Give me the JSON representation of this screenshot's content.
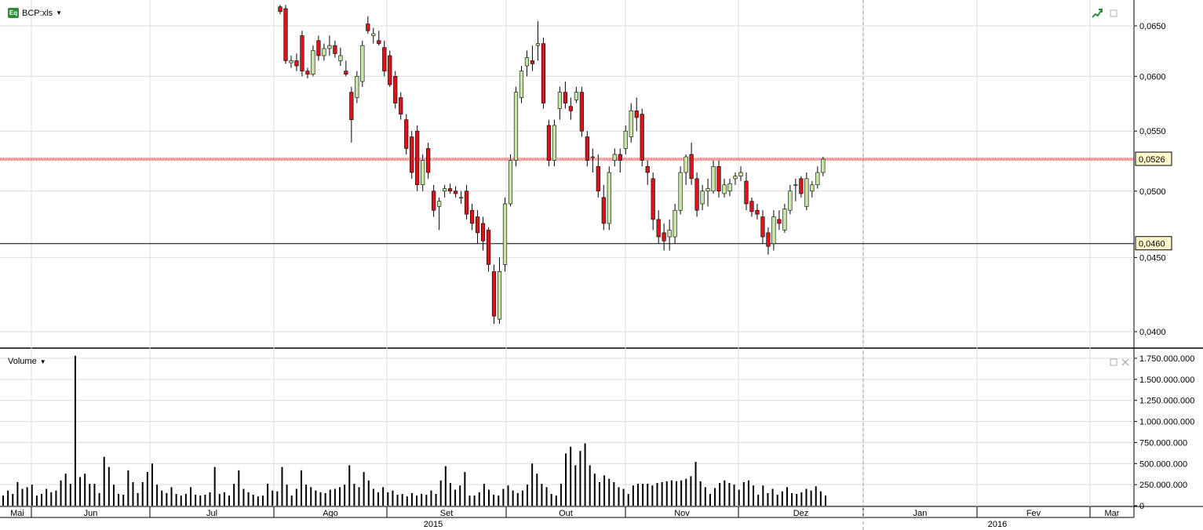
{
  "instrument": {
    "label": "BCP:xls",
    "icon": "eq-icon",
    "icon_text": "Eq"
  },
  "volume_panel": {
    "label": "Volume"
  },
  "colors": {
    "up": "#c8e6a8",
    "down": "#d9141a",
    "wick": "#000000",
    "grid": "#dcdcdc",
    "bar": "#000000"
  },
  "price_labels": {
    "last": "0,0526",
    "support": "0,0460"
  },
  "chart_data": [
    {
      "type": "candlestick",
      "title": "",
      "y_axis": {
        "ticks": [
          "0,0400",
          "0,0450",
          "0,0500",
          "0,0550",
          "0,0600",
          "0,0650"
        ],
        "position": "right"
      },
      "x_axis": {
        "months": [
          "Mai",
          "Jun",
          "Jul",
          "Ago",
          "Set",
          "Out",
          "Nov",
          "Dez",
          "Jan",
          "Fev",
          "Mar"
        ],
        "years": [
          "2015",
          "2016"
        ]
      },
      "reference_lines": [
        {
          "value": 0.0526,
          "label": "0,0526",
          "style": "dotted-red"
        },
        {
          "value": 0.046,
          "label": "0,0460",
          "style": "solid-black"
        }
      ],
      "candles": [
        [
          0.067,
          0.0672,
          0.0662,
          0.0665
        ],
        [
          0.0668,
          0.0672,
          0.0612,
          0.0615
        ],
        [
          0.0613,
          0.062,
          0.0608,
          0.0615
        ],
        [
          0.0615,
          0.0622,
          0.0605,
          0.061
        ],
        [
          0.064,
          0.0645,
          0.06,
          0.0605
        ],
        [
          0.0605,
          0.0608,
          0.0598,
          0.0602
        ],
        [
          0.0602,
          0.063,
          0.06,
          0.0625
        ],
        [
          0.0635,
          0.064,
          0.0615,
          0.062
        ],
        [
          0.062,
          0.0632,
          0.0615,
          0.0627
        ],
        [
          0.0627,
          0.064,
          0.062,
          0.063
        ],
        [
          0.063,
          0.0635,
          0.0618,
          0.0622
        ],
        [
          0.0615,
          0.0628,
          0.061,
          0.062
        ],
        [
          0.0605,
          0.0615,
          0.06,
          0.0602
        ],
        [
          0.0585,
          0.059,
          0.054,
          0.056
        ],
        [
          0.058,
          0.0605,
          0.0575,
          0.06
        ],
        [
          0.0595,
          0.0635,
          0.059,
          0.063
        ],
        [
          0.0652,
          0.066,
          0.0642,
          0.0645
        ],
        [
          0.064,
          0.0648,
          0.0632,
          0.0642
        ],
        [
          0.0635,
          0.0645,
          0.063,
          0.0632
        ],
        [
          0.0628,
          0.0635,
          0.06,
          0.0605
        ],
        [
          0.062,
          0.0625,
          0.059,
          0.0592
        ],
        [
          0.06,
          0.0605,
          0.057,
          0.0575
        ],
        [
          0.058,
          0.0585,
          0.056,
          0.0565
        ],
        [
          0.056,
          0.0565,
          0.053,
          0.0535
        ],
        [
          0.0545,
          0.055,
          0.051,
          0.0515
        ],
        [
          0.055,
          0.0555,
          0.05,
          0.0505
        ],
        [
          0.0505,
          0.053,
          0.05,
          0.0525
        ],
        [
          0.0535,
          0.054,
          0.051,
          0.0515
        ],
        [
          0.05,
          0.0505,
          0.048,
          0.0485
        ],
        [
          0.0488,
          0.0495,
          0.047,
          0.0492
        ],
        [
          0.05,
          0.0505,
          0.0495,
          0.0502
        ],
        [
          0.0502,
          0.0506,
          0.0498,
          0.05
        ],
        [
          0.05,
          0.0504,
          0.0495,
          0.0498
        ],
        [
          0.0495,
          0.05,
          0.049,
          0.0495
        ],
        [
          0.05,
          0.0505,
          0.0478,
          0.0482
        ],
        [
          0.0485,
          0.049,
          0.047,
          0.0475
        ],
        [
          0.048,
          0.0485,
          0.046,
          0.0468
        ],
        [
          0.0475,
          0.048,
          0.0455,
          0.0462
        ],
        [
          0.047,
          0.0472,
          0.044,
          0.0445
        ],
        [
          0.044,
          0.0445,
          0.0405,
          0.041
        ],
        [
          0.0408,
          0.045,
          0.0405,
          0.044
        ],
        [
          0.0445,
          0.0495,
          0.044,
          0.049
        ],
        [
          0.049,
          0.053,
          0.0488,
          0.0525
        ],
        [
          0.0525,
          0.059,
          0.052,
          0.0585
        ],
        [
          0.058,
          0.061,
          0.0575,
          0.0605
        ],
        [
          0.061,
          0.0625,
          0.06,
          0.0618
        ],
        [
          0.0615,
          0.063,
          0.0605,
          0.0612
        ],
        [
          0.063,
          0.0655,
          0.0615,
          0.0632
        ],
        [
          0.0632,
          0.0638,
          0.057,
          0.0575
        ],
        [
          0.0555,
          0.056,
          0.052,
          0.0525
        ],
        [
          0.0525,
          0.056,
          0.052,
          0.0555
        ],
        [
          0.057,
          0.059,
          0.056,
          0.0585
        ],
        [
          0.0585,
          0.0595,
          0.057,
          0.0575
        ],
        [
          0.0572,
          0.058,
          0.056,
          0.0568
        ],
        [
          0.0578,
          0.059,
          0.0575,
          0.0585
        ],
        [
          0.0585,
          0.059,
          0.0545,
          0.055
        ],
        [
          0.0545,
          0.055,
          0.052,
          0.0525
        ],
        [
          0.0528,
          0.0535,
          0.0515,
          0.0528
        ],
        [
          0.052,
          0.053,
          0.0495,
          0.05
        ],
        [
          0.0495,
          0.0505,
          0.047,
          0.0475
        ],
        [
          0.0475,
          0.052,
          0.047,
          0.0515
        ],
        [
          0.0525,
          0.0535,
          0.052,
          0.053
        ],
        [
          0.053,
          0.0535,
          0.0515,
          0.0525
        ],
        [
          0.0535,
          0.0555,
          0.053,
          0.055
        ],
        [
          0.0545,
          0.0575,
          0.054,
          0.0568
        ],
        [
          0.0568,
          0.058,
          0.055,
          0.0562
        ],
        [
          0.0565,
          0.057,
          0.052,
          0.0525
        ],
        [
          0.052,
          0.0525,
          0.0505,
          0.0515
        ],
        [
          0.051,
          0.0515,
          0.047,
          0.0478
        ],
        [
          0.0478,
          0.0485,
          0.046,
          0.0465
        ],
        [
          0.0468,
          0.0475,
          0.0455,
          0.0462
        ],
        [
          0.0465,
          0.0478,
          0.0455,
          0.047
        ],
        [
          0.0465,
          0.049,
          0.046,
          0.0485
        ],
        [
          0.0485,
          0.052,
          0.0482,
          0.0515
        ],
        [
          0.0515,
          0.053,
          0.0505,
          0.0528
        ],
        [
          0.053,
          0.054,
          0.0505,
          0.051
        ],
        [
          0.051,
          0.0515,
          0.048,
          0.0485
        ],
        [
          0.049,
          0.0505,
          0.0485,
          0.05
        ],
        [
          0.05,
          0.051,
          0.0488,
          0.0502
        ],
        [
          0.05,
          0.0525,
          0.0498,
          0.052
        ],
        [
          0.052,
          0.0525,
          0.0495,
          0.05
        ],
        [
          0.0498,
          0.051,
          0.0495,
          0.0505
        ],
        [
          0.05,
          0.051,
          0.0496,
          0.0506
        ],
        [
          0.051,
          0.0515,
          0.0505,
          0.0512
        ],
        [
          0.0512,
          0.052,
          0.0508,
          0.0515
        ],
        [
          0.0508,
          0.0515,
          0.0485,
          0.049
        ],
        [
          0.0492,
          0.0495,
          0.048,
          0.0484
        ],
        [
          0.0485,
          0.049,
          0.0478,
          0.0482
        ],
        [
          0.048,
          0.0485,
          0.046,
          0.0465
        ],
        [
          0.0468,
          0.0472,
          0.0452,
          0.0458
        ],
        [
          0.046,
          0.0485,
          0.0455,
          0.048
        ],
        [
          0.0478,
          0.0485,
          0.047,
          0.0475
        ],
        [
          0.047,
          0.049,
          0.0468,
          0.0486
        ],
        [
          0.0485,
          0.0505,
          0.0482,
          0.05
        ],
        [
          0.0505,
          0.051,
          0.0492,
          0.0505
        ],
        [
          0.051,
          0.0512,
          0.0495,
          0.0498
        ],
        [
          0.0488,
          0.0515,
          0.0485,
          0.051
        ],
        [
          0.05,
          0.0508,
          0.0495,
          0.0505
        ],
        [
          0.0505,
          0.052,
          0.0502,
          0.0515
        ],
        [
          0.0515,
          0.0528,
          0.0512,
          0.0526
        ]
      ]
    },
    {
      "type": "bar",
      "title": "Volume",
      "y_axis": {
        "ticks": [
          "0",
          "250.000.000",
          "500.000.000",
          "750.000.000",
          "1.000.000.000",
          "1.250.000.000",
          "1.500.000.000",
          "1.750.000.000"
        ],
        "position": "right"
      },
      "values": [
        120,
        180,
        140,
        280,
        200,
        220,
        250,
        120,
        140,
        200,
        160,
        180,
        300,
        380,
        260,
        1780,
        340,
        380,
        260,
        260,
        150,
        580,
        460,
        250,
        140,
        130,
        420,
        280,
        150,
        280,
        400,
        500,
        250,
        180,
        150,
        220,
        140,
        120,
        140,
        220,
        130,
        120,
        130,
        160,
        460,
        140,
        160,
        120,
        260,
        420,
        200,
        160,
        130,
        110,
        120,
        260,
        180,
        170,
        460,
        250,
        120,
        200,
        420,
        250,
        220,
        180,
        160,
        150,
        190,
        200,
        220,
        250,
        480,
        260,
        220,
        400,
        300,
        200,
        160,
        220,
        160,
        180,
        130,
        140,
        110,
        150,
        120,
        140,
        130,
        180,
        140,
        300,
        470,
        270,
        190,
        240,
        400,
        120,
        120,
        160,
        260,
        190,
        130,
        120,
        200,
        240,
        180,
        150,
        180,
        250,
        500,
        380,
        260,
        220,
        140,
        120,
        260,
        620,
        700,
        480,
        650,
        740,
        480,
        380,
        280,
        360,
        320,
        280,
        220,
        200,
        140,
        240,
        260,
        260,
        260,
        240,
        270,
        280,
        290,
        300,
        290,
        300,
        320,
        350,
        520,
        290,
        220,
        140,
        210,
        270,
        300,
        270,
        250,
        190,
        280,
        300,
        240,
        130,
        240,
        150,
        200,
        130,
        170,
        220,
        150,
        140,
        160,
        200,
        180,
        230,
        170,
        120
      ],
      "values_unit": "millions"
    }
  ]
}
